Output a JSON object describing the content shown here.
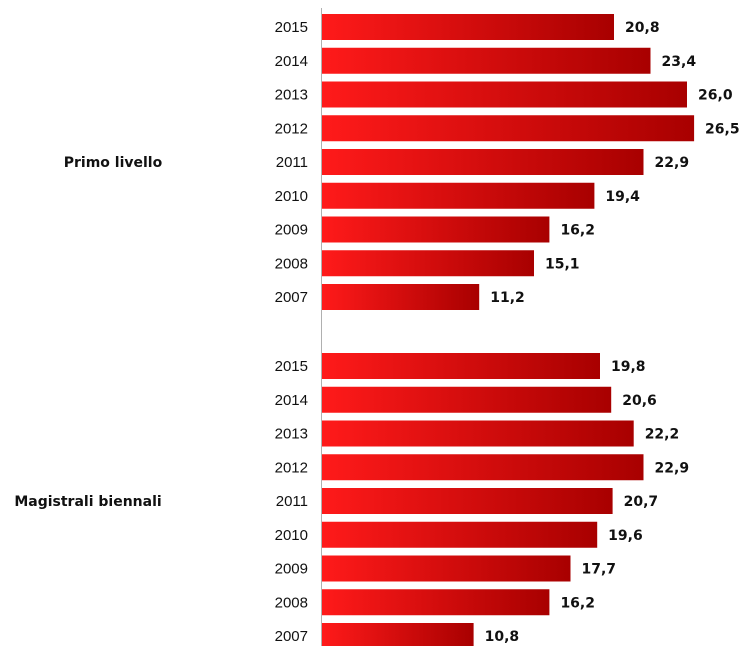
{
  "chart_data": {
    "type": "bar",
    "orientation": "horizontal",
    "value_format": "comma-decimal",
    "colors": {
      "bar_start": "#ff1a1a",
      "bar_end": "#a80000",
      "axis": "#b0b0b0"
    },
    "groups": [
      {
        "name": "Primo livello",
        "categories": [
          "2015",
          "2014",
          "2013",
          "2012",
          "2011",
          "2010",
          "2009",
          "2008",
          "2007"
        ],
        "values": [
          20.8,
          23.4,
          26.0,
          26.5,
          22.9,
          19.4,
          16.2,
          15.1,
          11.2
        ],
        "labels": [
          "20,8",
          "23,4",
          "26,0",
          "26,5",
          "22,9",
          "19,4",
          "16,2",
          "15,1",
          "11,2"
        ]
      },
      {
        "name": "Magistrali biennali",
        "categories": [
          "2015",
          "2014",
          "2013",
          "2012",
          "2011",
          "2010",
          "2009",
          "2008",
          "2007"
        ],
        "values": [
          19.8,
          20.6,
          22.2,
          22.9,
          20.7,
          19.6,
          17.7,
          16.2,
          10.8
        ],
        "labels": [
          "19,8",
          "20,6",
          "22,2",
          "22,9",
          "20,7",
          "19,6",
          "17,7",
          "16,2",
          "10,8"
        ]
      }
    ]
  }
}
